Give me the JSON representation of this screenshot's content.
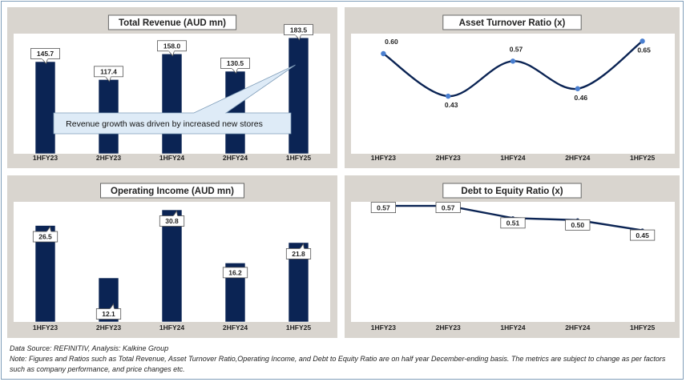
{
  "chart_data": [
    {
      "id": "revenue",
      "type": "bar",
      "title": "Total Revenue (AUD mn)",
      "categories": [
        "1HFY23",
        "2HFY23",
        "1HFY24",
        "2HFY24",
        "1HFY25"
      ],
      "values": [
        145.7,
        117.4,
        158.0,
        130.5,
        183.5
      ],
      "value_labels": [
        "145.7",
        "117.4",
        "158.0",
        "130.5",
        "183.5"
      ],
      "ylim": [
        0,
        190
      ],
      "color": "#0b2454",
      "annotation": "Revenue growth was driven by increased new stores"
    },
    {
      "id": "asset_turnover",
      "type": "line",
      "title": "Asset Turnover Ratio (x)",
      "categories": [
        "1HFY23",
        "2HFY23",
        "1HFY24",
        "2HFY24",
        "1HFY25"
      ],
      "values": [
        0.6,
        0.43,
        0.57,
        0.46,
        0.65
      ],
      "value_labels": [
        "0.60",
        "0.43",
        "0.57",
        "0.46",
        "0.65"
      ],
      "ylim": [
        0.2,
        0.68
      ],
      "color": "#0b2454",
      "marker_color": "#4a7fd0"
    },
    {
      "id": "operating_income",
      "type": "bar",
      "title": "Operating Income (AUD mn)",
      "categories": [
        "1HFY23",
        "2HFY23",
        "1HFY24",
        "2HFY24",
        "1HFY25"
      ],
      "values": [
        26.5,
        12.1,
        30.8,
        16.2,
        21.8
      ],
      "value_labels": [
        "26.5",
        "12.1",
        "30.8",
        "16.2",
        "21.8"
      ],
      "ylim": [
        0,
        33
      ],
      "color": "#0b2454"
    },
    {
      "id": "debt_equity",
      "type": "line",
      "title": "Debt to Equity Ratio (x)",
      "categories": [
        "1HFY23",
        "2HFY23",
        "1HFY24",
        "2HFY24",
        "1HFY25"
      ],
      "values": [
        0.57,
        0.57,
        0.51,
        0.5,
        0.45
      ],
      "value_labels": [
        "0.57",
        "0.57",
        "0.51",
        "0.50",
        "0.45"
      ],
      "ylim": [
        0.0,
        0.59
      ],
      "color": "#0b2454",
      "marker_color": "#0b2454"
    }
  ],
  "footer": {
    "source": "Data Source: REFINITIV, Analysis: Kalkine Group",
    "note": "Note: Figures and Ratios such as Total Revenue, Asset Turnover Ratio,Operating Income, and Debt to Equity Ratio are on half year December-ending basis. The metrics are subject to change as per factors such as company performance, and price changes etc."
  }
}
